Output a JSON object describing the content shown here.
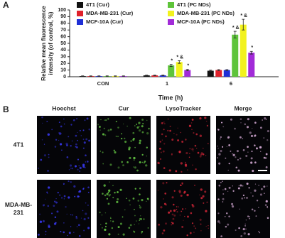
{
  "chart_data": {
    "type": "bar",
    "ylabel": [
      "Relative mean fluorescence",
      "intensity (of control, %)"
    ],
    "xlabel": "Time (h)",
    "categories": [
      "CON",
      "1",
      "6"
    ],
    "ylim": [
      0,
      100
    ],
    "yticks": [
      0,
      10,
      20,
      30,
      40,
      50,
      60,
      70,
      80,
      90,
      100
    ],
    "series": [
      {
        "name": "4T1 (Cur)",
        "color": "#111111",
        "values": [
          1,
          2,
          9
        ],
        "errors": [
          0.3,
          0.4,
          0.8
        ],
        "significance": [
          null,
          null,
          null
        ]
      },
      {
        "name": "MDA-MB-231 (Cur)",
        "color": "#e0212b",
        "values": [
          1,
          2,
          10
        ],
        "errors": [
          0.3,
          0.4,
          0.8
        ],
        "significance": [
          null,
          null,
          null
        ]
      },
      {
        "name": "MCF-10A (Cur)",
        "color": "#1f2fd6",
        "values": [
          1,
          2,
          10
        ],
        "errors": [
          0.3,
          0.4,
          0.8
        ],
        "significance": [
          null,
          null,
          null
        ]
      },
      {
        "name": "4T1 (PC NDs)",
        "color": "#5ec43a",
        "values": [
          1,
          17,
          63
        ],
        "errors": [
          0.3,
          1.5,
          5
        ],
        "significance": [
          null,
          "*",
          "* &"
        ]
      },
      {
        "name": "MDA-MB-231 (PC NDs)",
        "color": "#f2f21e",
        "values": [
          1,
          22,
          78
        ],
        "errors": [
          0.3,
          2,
          8
        ],
        "significance": [
          null,
          "* &",
          "* &"
        ]
      },
      {
        "name": "MCF-10A (PC NDs)",
        "color": "#a22bd8",
        "values": [
          1,
          10,
          36
        ],
        "errors": [
          0.3,
          1,
          2
        ],
        "significance": [
          null,
          "*",
          "*"
        ]
      }
    ]
  },
  "panel_labels": [
    "A",
    "B"
  ],
  "images": {
    "columns": [
      "Hoechst",
      "Cur",
      "LysoTracker",
      "Merge"
    ],
    "rows": [
      [
        "4T1"
      ],
      [
        "MDA-MB-",
        "231"
      ]
    ]
  }
}
